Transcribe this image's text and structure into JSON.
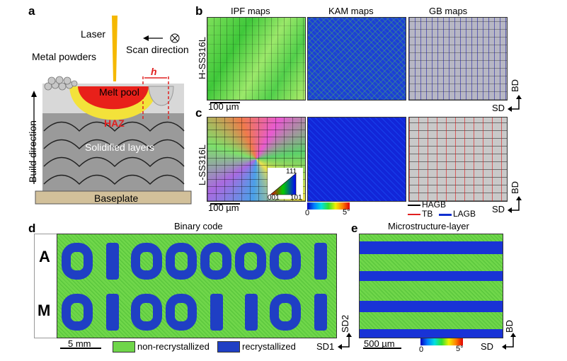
{
  "panels": {
    "a": "a",
    "b": "b",
    "c": "c",
    "d": "d",
    "e": "e"
  },
  "panel_a": {
    "laser": "Laser",
    "scan_direction": "Scan direction",
    "metal_powders": "Metal powders",
    "h": "h",
    "melt_pool": "Melt pool",
    "haz": "HAZ",
    "solidified_layers": "Solidified layers",
    "baseplate": "Baseplate",
    "build_direction": "Build direction",
    "colors": {
      "melt": "#e8201a",
      "haz": "#f3e23a",
      "layers": "#9a9a9a",
      "baseplate": "#d2c09a"
    }
  },
  "panel_b": {
    "col_titles": [
      "IPF maps",
      "KAM maps",
      "GB maps"
    ],
    "sample": "H-SS316L",
    "scale": "100 µm",
    "axis_bd": "BD",
    "axis_sd": "SD"
  },
  "panel_c": {
    "sample": "L-SS316L",
    "scale": "100 µm",
    "ipf_key": [
      "111",
      "001",
      "101"
    ],
    "kam_min": "0",
    "kam_max": "5°",
    "gb_legend": [
      "HAGB",
      "TB",
      "LAGB"
    ],
    "gb_colors": [
      "#000000",
      "#e02020",
      "#1030d0"
    ],
    "axis_bd": "BD",
    "axis_sd": "SD"
  },
  "panel_d": {
    "title": "Binary code",
    "row1": "A",
    "row2": "M",
    "code_row1": "01000001",
    "code_row2": "01001101",
    "scale": "5 mm",
    "legend_non": "non-recrystallized",
    "legend_rec": "recrystallized",
    "axis_y": "SD2",
    "axis_x": "SD1",
    "colors": {
      "non": "#6fd64a",
      "rec": "#1f3fc4"
    }
  },
  "panel_e": {
    "title": "Microstructure-layer",
    "scale": "500 µm",
    "bar_min": "0",
    "bar_max": "5°",
    "axis_bd": "BD",
    "axis_sd": "SD"
  }
}
